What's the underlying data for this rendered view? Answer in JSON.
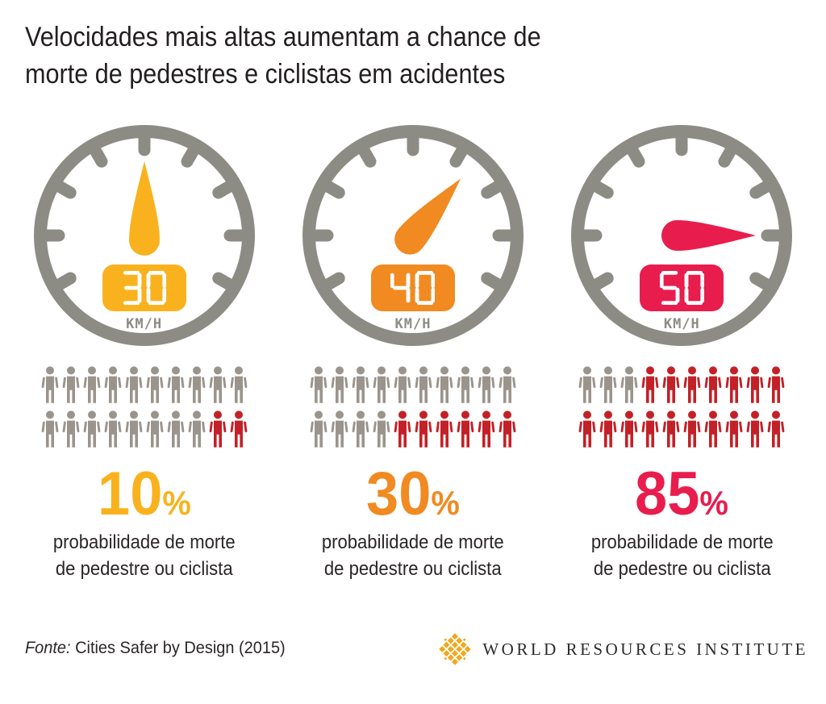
{
  "title": {
    "line1": "Velocidades mais altas aumentam a chance de",
    "line2": "morte de pedestres e ciclistas em acidentes"
  },
  "colors": {
    "background": "#FFFFFF",
    "title_text": "#231F20",
    "caption_text": "#2B2627",
    "gauge_gray": "#8C8C84",
    "people_gray": "#9A948C",
    "people_red": "#C32127",
    "accent_yellow": "#F9B21E",
    "accent_orange": "#F18A21",
    "accent_crimson": "#E81D4D",
    "display_digit_color": "#FFFFFF",
    "logo_gold": "#F0A81E",
    "logo_text": "#2B2B2B"
  },
  "gauges": [
    {
      "speed": "30",
      "unit": "KM/H",
      "needle_angle_deg": 0,
      "accent": "#F9B21E",
      "percent": "10",
      "percent_sign": "%",
      "caption_line1": "probabilidade de morte",
      "caption_line2": "de pedestre ou ciclista",
      "people_total": 20,
      "people_red_count": 2
    },
    {
      "speed": "40",
      "unit": "KM/H",
      "needle_angle_deg": 40,
      "accent": "#F18A21",
      "percent": "30",
      "percent_sign": "%",
      "caption_line1": "probabilidade de morte",
      "caption_line2": "de pedestre ou ciclista",
      "people_total": 20,
      "people_red_count": 6
    },
    {
      "speed": "50",
      "unit": "KM/H",
      "needle_angle_deg": 90,
      "accent": "#E81D4D",
      "percent": "85",
      "percent_sign": "%",
      "caption_line1": "probabilidade de morte",
      "caption_line2": "de pedestre ou ciclista",
      "people_total": 20,
      "people_red_count": 17
    }
  ],
  "footer": {
    "source_label": "Fonte:",
    "source_text": " Cities Safer by Design (2015)",
    "logo_text": "WORLD RESOURCES INSTITUTE"
  },
  "chart_data": {
    "type": "bar",
    "subtype": "pictogram-infographic",
    "title": "Velocidades mais altas aumentam a chance de morte de pedestres e ciclistas em acidentes",
    "categories": [
      "30 KM/H",
      "40 KM/H",
      "50 KM/H"
    ],
    "series": [
      {
        "name": "Probabilidade de morte de pedestre ou ciclista (%)",
        "values": [
          10,
          30,
          85
        ]
      }
    ],
    "pictogram": {
      "icons_per_category": 20,
      "highlighted_icons": [
        2,
        6,
        17
      ]
    },
    "annotations": [
      "10%",
      "30%",
      "85%",
      "probabilidade de morte de pedestre ou ciclista"
    ],
    "source": "Cities Safer by Design (2015)"
  }
}
